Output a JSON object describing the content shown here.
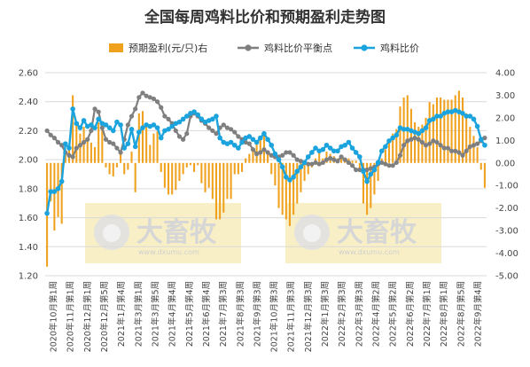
{
  "chart_data": {
    "type": "line",
    "title": "全国每周鸡料比价和预期盈利走势图",
    "legend": [
      {
        "name": "预期盈利(元/只)右",
        "color": "#F0A21E",
        "kind": "bar"
      },
      {
        "name": "鸡料比价平衡点",
        "color": "#7F7F7F",
        "kind": "line"
      },
      {
        "name": "鸡料比价",
        "color": "#1AA3DD",
        "kind": "line"
      }
    ],
    "legend_position": "top",
    "left_axis": {
      "min": 1.2,
      "max": 2.6,
      "ticks": [
        "1.20",
        "1.40",
        "1.60",
        "1.80",
        "2.00",
        "2.20",
        "2.40",
        "2.60"
      ]
    },
    "right_axis": {
      "min": -5.0,
      "max": 4.0,
      "ticks": [
        "-5.00",
        "-4.00",
        "-3.00",
        "-2.00",
        "-1.00",
        "0.00",
        "1.00",
        "2.00",
        "3.00",
        "4.00"
      ]
    },
    "x_ticks": [
      "2020年10月第1周",
      "2020年11月第1周",
      "2020年12月第1周",
      "2020年12月第5周",
      "2021年1月第4周",
      "2021年3月第1周",
      "2021年3月第5周",
      "2021年4月第4周",
      "2021年5月第4周",
      "2021年6月第4周",
      "2021年7月第3周",
      "2021年8月第3周",
      "2021年9月第3周",
      "2021年10月第3周",
      "2021年11月第3周",
      "2021年12月第3周",
      "2022年1月第3周",
      "2022年2月第3周",
      "2022年3月第3周",
      "2022年4月第2周",
      "2022年5月第2周",
      "2022年6月第2周",
      "2022年7月第1周",
      "2022年8月第1周",
      "2022年8月第5周",
      "2022年9月第4周"
    ],
    "series": [
      {
        "name": "鸡料比价",
        "values": [
          1.63,
          1.78,
          1.78,
          1.8,
          1.85,
          2.11,
          2.08,
          2.35,
          2.25,
          2.22,
          2.27,
          2.23,
          2.24,
          2.22,
          2.28,
          2.25,
          2.24,
          2.22,
          2.2,
          2.26,
          2.24,
          2.08,
          2.11,
          2.21,
          2.09,
          2.19,
          2.22,
          2.24,
          2.23,
          2.24,
          2.22,
          2.15,
          2.2,
          2.21,
          2.23,
          2.25,
          2.26,
          2.28,
          2.3,
          2.32,
          2.33,
          2.31,
          2.28,
          2.26,
          2.27,
          2.28,
          2.3,
          2.15,
          2.12,
          2.11,
          2.12,
          2.1,
          2.08,
          2.12,
          2.15,
          2.16,
          2.14,
          2.12,
          2.15,
          2.18,
          2.14,
          2.1,
          2.04,
          2.0,
          1.95,
          1.88,
          1.86,
          1.88,
          1.92,
          1.95,
          1.98,
          2.02,
          2.05,
          2.08,
          2.06,
          2.07,
          2.1,
          2.08,
          2.06,
          2.06,
          2.09,
          2.1,
          2.12,
          2.08,
          2.05,
          2.02,
          1.92,
          1.85,
          1.9,
          1.93,
          1.98,
          2.06,
          2.09,
          2.13,
          2.15,
          2.17,
          2.22,
          2.21,
          2.21,
          2.2,
          2.19,
          2.18,
          2.2,
          2.22,
          2.27,
          2.28,
          2.3,
          2.3,
          2.32,
          2.33,
          2.33,
          2.34,
          2.33,
          2.32,
          2.3,
          2.3,
          2.28,
          2.23,
          2.14,
          2.1
        ]
      },
      {
        "name": "鸡料比价平衡点",
        "values": [
          2.2,
          2.17,
          2.15,
          2.12,
          2.1,
          2.05,
          2.03,
          2.02,
          2.08,
          2.1,
          2.12,
          2.14,
          2.2,
          2.35,
          2.33,
          2.22,
          2.14,
          2.12,
          2.11,
          2.08,
          2.05,
          2.14,
          2.24,
          2.3,
          2.35,
          2.43,
          2.46,
          2.44,
          2.43,
          2.42,
          2.4,
          2.36,
          2.3,
          2.28,
          2.25,
          2.2,
          2.16,
          2.14,
          2.18,
          2.3,
          2.32,
          2.3,
          2.27,
          2.25,
          2.22,
          2.2,
          2.18,
          2.22,
          2.24,
          2.22,
          2.21,
          2.19,
          2.16,
          2.14,
          2.12,
          2.11,
          2.07,
          2.04,
          2.05,
          2.07,
          2.05,
          2.03,
          2.02,
          2.02,
          2.03,
          2.05,
          2.05,
          2.03,
          2.0,
          1.99,
          1.98,
          1.97,
          1.97,
          1.98,
          1.97,
          1.98,
          2.0,
          2.01,
          2.0,
          1.99,
          2.02,
          2.0,
          1.98,
          1.96,
          1.93,
          1.93,
          1.93,
          1.93,
          1.94,
          1.95,
          1.97,
          1.98,
          1.97,
          1.96,
          1.96,
          1.98,
          2.03,
          2.1,
          2.13,
          2.14,
          2.15,
          2.14,
          2.12,
          2.1,
          2.11,
          2.13,
          2.12,
          2.1,
          2.08,
          2.08,
          2.06,
          2.06,
          2.05,
          2.03,
          2.06,
          2.09,
          2.1,
          2.11,
          2.13,
          2.15
        ]
      },
      {
        "name": "预期盈利(元/只)右",
        "values": [
          -4.6,
          -1.7,
          -3.0,
          -2.4,
          -2.7,
          0.6,
          0.7,
          3.0,
          1.7,
          1.3,
          1.6,
          1.0,
          0.9,
          0.7,
          1.8,
          1.6,
          -0.2,
          -0.5,
          -0.6,
          -0.2,
          0.5,
          -0.5,
          -0.3,
          0.5,
          -1.3,
          2.2,
          2.3,
          1.6,
          0.8,
          1.3,
          1.4,
          -0.4,
          -1.1,
          -1.4,
          -1.4,
          -1.2,
          -0.8,
          -0.5,
          -0.2,
          -0.1,
          -0.4,
          -0.1,
          -0.9,
          -1.3,
          -1.1,
          -1.6,
          -2.5,
          -2.5,
          -2.2,
          -1.6,
          -1.6,
          -0.5,
          -0.5,
          -0.4,
          0.2,
          0.4,
          0.5,
          0.9,
          1.1,
          1.3,
          0.5,
          -0.5,
          -1.0,
          -2.0,
          -2.3,
          -2.5,
          -2.8,
          -2.3,
          -1.8,
          -1.3,
          -0.8,
          -0.5,
          -0.2,
          0.2,
          0.5,
          0.2,
          0.5,
          0.4,
          0.3,
          0.2,
          0.2,
          0.1,
          0.2,
          0.1,
          0.1,
          -0.3,
          -1.8,
          -2.3,
          -2.0,
          -1.4,
          -0.8,
          0.2,
          0.6,
          1.0,
          1.3,
          1.5,
          2.5,
          2.9,
          3.0,
          2.4,
          1.8,
          1.6,
          1.7,
          2.0,
          2.7,
          2.6,
          2.9,
          2.9,
          2.8,
          2.8,
          2.8,
          3.0,
          3.2,
          2.9,
          2.2,
          1.6,
          1.2,
          0.7,
          -0.3,
          -1.1
        ]
      }
    ]
  },
  "watermark": {
    "brand": "大畜牧",
    "url": "www.dxumu.com"
  }
}
